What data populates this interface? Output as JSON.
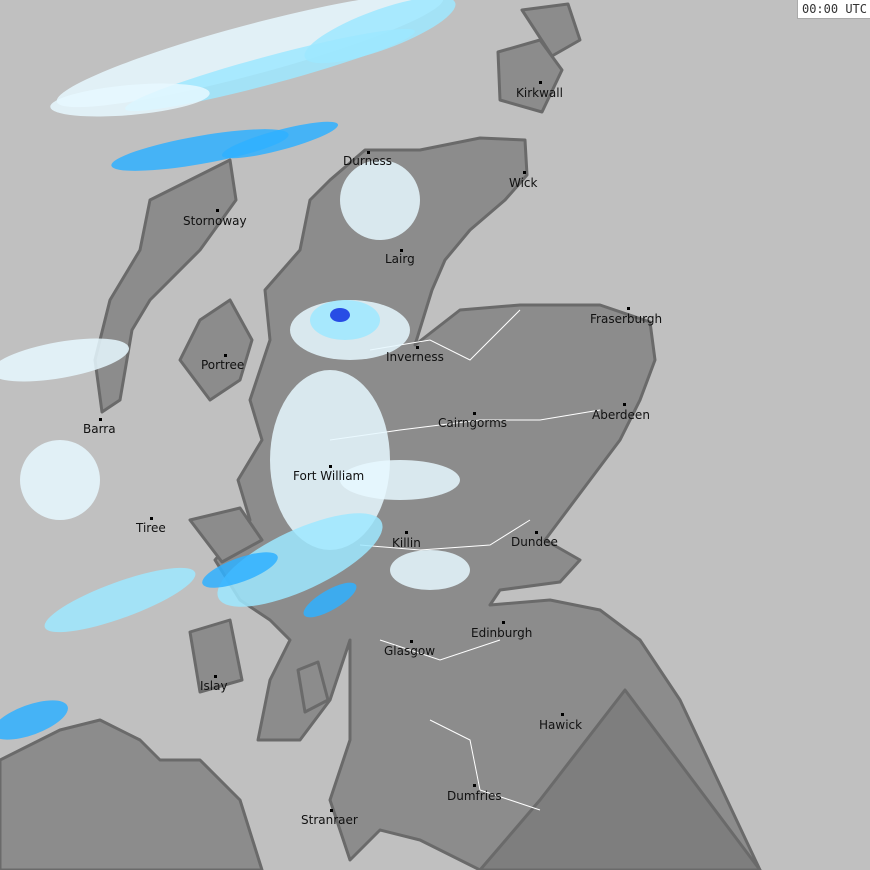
{
  "timestamp": "00:00 UTC",
  "colors": {
    "sea": "#c0c0c0",
    "land": "#8c8c8c",
    "england": "#7e7e7e",
    "coast": "#6a6a6a",
    "rivers": "#ffffff",
    "precip_very_light": "#e6f8ff",
    "precip_light": "#9ee8ff",
    "precip_moderate": "#2fb0ff",
    "precip_heavy": "#1e6dff",
    "precip_very_heavy": "#1030e0"
  },
  "cities": [
    {
      "name": "Kirkwall"
    },
    {
      "name": "Wick"
    },
    {
      "name": "Durness"
    },
    {
      "name": "Stornoway"
    },
    {
      "name": "Lairg"
    },
    {
      "name": "Fraserburgh"
    },
    {
      "name": "Inverness"
    },
    {
      "name": "Portree"
    },
    {
      "name": "Aberdeen"
    },
    {
      "name": "Barra"
    },
    {
      "name": "Cairngorms"
    },
    {
      "name": "Fort William"
    },
    {
      "name": "Tiree"
    },
    {
      "name": "Killin"
    },
    {
      "name": "Dundee"
    },
    {
      "name": "Edinburgh"
    },
    {
      "name": "Glasgow"
    },
    {
      "name": "Islay"
    },
    {
      "name": "Hawick"
    },
    {
      "name": "Dumfries"
    },
    {
      "name": "Stranraer"
    }
  ]
}
